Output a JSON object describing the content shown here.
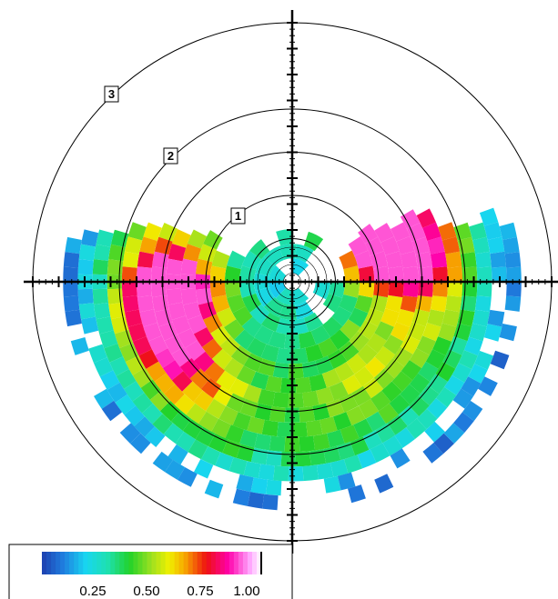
{
  "chart_data": {
    "type": "heatmap",
    "subtype": "polar-sector-heatmap",
    "title": "",
    "radial_rings": [
      1,
      2,
      3
    ],
    "radial_max": 3,
    "orientation": "0 at right, angle measured counter-clockwise, bottom half fully populated",
    "value_range": [
      0,
      1.0
    ],
    "colorbar": {
      "ticks": [
        0.25,
        0.5,
        0.75,
        1.0
      ],
      "tick_labels": [
        "0.25",
        "0.50",
        "0.75",
        "1.00"
      ],
      "range": [
        0,
        1.0
      ],
      "placement": "bottom-left"
    },
    "colormap": [
      {
        "stop": 0.0,
        "color": "#1e3faf"
      },
      {
        "stop": 0.1,
        "color": "#1f7fe0"
      },
      {
        "stop": 0.2,
        "color": "#18d6f0"
      },
      {
        "stop": 0.3,
        "color": "#1ee0b0"
      },
      {
        "stop": 0.4,
        "color": "#22d22a"
      },
      {
        "stop": 0.5,
        "color": "#9ee020"
      },
      {
        "stop": 0.58,
        "color": "#f0f000"
      },
      {
        "stop": 0.65,
        "color": "#f7a800"
      },
      {
        "stop": 0.75,
        "color": "#ee1111"
      },
      {
        "stop": 0.85,
        "color": "#ff00aa"
      },
      {
        "stop": 0.95,
        "color": "#ffaaff"
      },
      {
        "stop": 1.0,
        "color": "#ffffff"
      }
    ],
    "hotspots": [
      {
        "angle_deg": 195,
        "radius": 1.5,
        "value": 0.85
      },
      {
        "angle_deg": 185,
        "radius": 1.35,
        "value": 0.75
      },
      {
        "angle_deg": 20,
        "radius": 1.0,
        "value": 0.76
      },
      {
        "angle_deg": 12,
        "radius": 1.5,
        "value": 0.72
      },
      {
        "angle_deg": 30,
        "radius": 1.3,
        "value": 0.62
      },
      {
        "angle_deg": 225,
        "radius": 1.6,
        "value": 0.5
      },
      {
        "angle_deg": 315,
        "radius": 1.3,
        "value": 0.45
      }
    ]
  },
  "ring_labels": [
    "1",
    "2",
    "3"
  ]
}
